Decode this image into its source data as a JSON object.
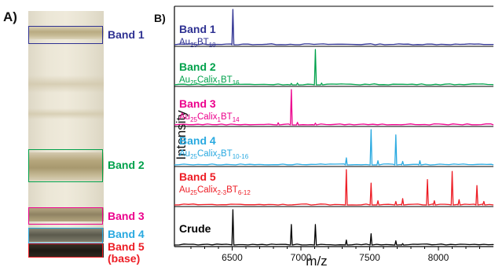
{
  "panel_a": {
    "letter": "A)",
    "bands": [
      {
        "label": "Band 1",
        "color": "#2e3192"
      },
      {
        "label": "Band 2",
        "color": "#00a14b"
      },
      {
        "label": "Band 3",
        "color": "#ec008c"
      },
      {
        "label": "Band 4",
        "color": "#29a9e0"
      },
      {
        "label": "Band 5",
        "color": "#ed1c24"
      }
    ],
    "base_label": "(base)"
  },
  "panel_b": {
    "letter": "B)",
    "ylabel": "Intensity",
    "xlabel": "m/z"
  },
  "chart_data": {
    "type": "line",
    "title": "",
    "xlabel": "m/z",
    "ylabel": "Intensity",
    "xlim": [
      6080,
      8400
    ],
    "x_ticks": [
      6500,
      7000,
      7500,
      8000
    ],
    "series": [
      {
        "name": "Band 1",
        "composition": "Au25BT18",
        "color": "#2e3192",
        "peaks": [
          [
            6505,
            1.0
          ]
        ]
      },
      {
        "name": "Band 2",
        "composition": "Au25Calix1BT16",
        "color": "#00a14b",
        "peaks": [
          [
            6930,
            0.04
          ],
          [
            6975,
            0.05
          ],
          [
            7105,
            1.0
          ],
          [
            7150,
            0.05
          ]
        ]
      },
      {
        "name": "Band 3",
        "composition": "Au25Calix1BT14",
        "color": "#ec008c",
        "peaks": [
          [
            6835,
            0.06
          ],
          [
            6930,
            1.0
          ],
          [
            6975,
            0.07
          ],
          [
            7105,
            0.05
          ]
        ]
      },
      {
        "name": "Band 4",
        "composition": "Au25Calix2BT10-16",
        "color": "#29a9e0",
        "peaks": [
          [
            7330,
            0.2
          ],
          [
            7510,
            1.0
          ],
          [
            7560,
            0.12
          ],
          [
            7690,
            0.85
          ],
          [
            7740,
            0.1
          ],
          [
            7865,
            0.12
          ]
        ]
      },
      {
        "name": "Band 5",
        "composition": "Au25Calix2-3BT6-12",
        "color": "#ed1c24",
        "peaks": [
          [
            7330,
            1.0
          ],
          [
            7510,
            0.62
          ],
          [
            7560,
            0.12
          ],
          [
            7690,
            0.1
          ],
          [
            7740,
            0.18
          ],
          [
            7920,
            0.72
          ],
          [
            7970,
            0.12
          ],
          [
            8100,
            0.95
          ],
          [
            8150,
            0.15
          ],
          [
            8280,
            0.55
          ],
          [
            8330,
            0.1
          ]
        ]
      },
      {
        "name": "Crude",
        "color": "#000000",
        "peaks": [
          [
            6505,
            1.0
          ],
          [
            6930,
            0.58
          ],
          [
            7105,
            0.58
          ],
          [
            7330,
            0.14
          ],
          [
            7510,
            0.32
          ],
          [
            7690,
            0.12
          ],
          [
            7740,
            0.04
          ]
        ]
      }
    ]
  }
}
